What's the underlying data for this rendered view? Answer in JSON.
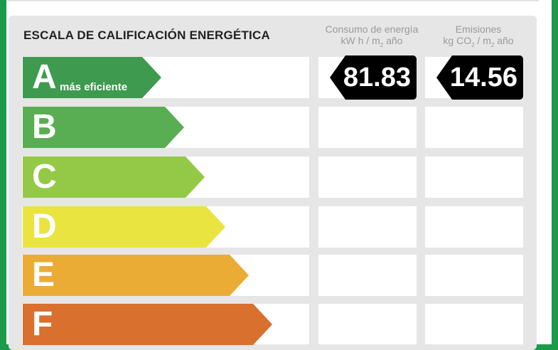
{
  "header": {
    "title": "ESCALA DE CALIFICACIÓN ENERGÉTICA"
  },
  "columns": {
    "consumption": {
      "line1": "Consumo de energía",
      "line2_pre": "kW h / m",
      "line2_sub": "2",
      "line2_post": " año"
    },
    "emissions": {
      "line1": "Emisiones",
      "line2_pre": "kg CO",
      "line2_sub1": "2",
      "line2_mid": " / m",
      "line2_sub2": "2",
      "line2_post": " año"
    }
  },
  "rating": {
    "consumption_value": "81.83",
    "emissions_value": "14.56",
    "rated_class": "A"
  },
  "scale": [
    {
      "letter": "A",
      "sublabel": "más eficiente",
      "color": "#3e9a4f"
    },
    {
      "letter": "B",
      "sublabel": "",
      "color": "#59ad52"
    },
    {
      "letter": "C",
      "sublabel": "",
      "color": "#93c947"
    },
    {
      "letter": "D",
      "sublabel": "",
      "color": "#e9e43f"
    },
    {
      "letter": "E",
      "sublabel": "",
      "color": "#eaac35"
    },
    {
      "letter": "F",
      "sublabel": "",
      "color": "#d9702e"
    }
  ]
}
